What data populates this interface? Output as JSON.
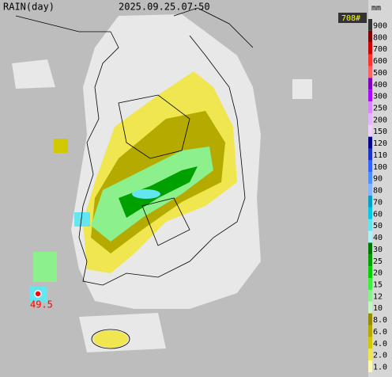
{
  "header": {
    "product": "RAIN(day)",
    "time": "2025.09.25.07:50",
    "count": "708#",
    "unit": "mm"
  },
  "legend": [
    {
      "label": "900",
      "color": "#333333"
    },
    {
      "label": "800",
      "color": "#800000"
    },
    {
      "label": "700",
      "color": "#d20000"
    },
    {
      "label": "600",
      "color": "#ff3232"
    },
    {
      "label": "500",
      "color": "#ff6464"
    },
    {
      "label": "400",
      "color": "#7f00bf"
    },
    {
      "label": "300",
      "color": "#ad07ff"
    },
    {
      "label": "250",
      "color": "#da87ff"
    },
    {
      "label": "200",
      "color": "#e6b4ff"
    },
    {
      "label": "150",
      "color": "#f0d2ff"
    },
    {
      "label": "120",
      "color": "#000390"
    },
    {
      "label": "110",
      "color": "#1e32c8"
    },
    {
      "label": "100",
      "color": "#3264ff"
    },
    {
      "label": "90",
      "color": "#4b91ff"
    },
    {
      "label": "80",
      "color": "#87b4ff"
    },
    {
      "label": "70",
      "color": "#00a0c8"
    },
    {
      "label": "60",
      "color": "#00c8e6"
    },
    {
      "label": "50",
      "color": "#64e6f0"
    },
    {
      "label": "40",
      "color": "#b4f0f5"
    },
    {
      "label": "30",
      "color": "#007800"
    },
    {
      "label": "25",
      "color": "#00a000"
    },
    {
      "label": "20",
      "color": "#00d200"
    },
    {
      "label": "15",
      "color": "#3cf03c"
    },
    {
      "label": "12",
      "color": "#8cf08c"
    },
    {
      "label": "10",
      "color": "#c8f5c8"
    },
    {
      "label": "8.0",
      "color": "#968c00"
    },
    {
      "label": "6.0",
      "color": "#b4aa00"
    },
    {
      "label": "4.0",
      "color": "#d2c800"
    },
    {
      "label": "2.0",
      "color": "#f0e650"
    },
    {
      "label": "1.0",
      "color": "#fafab4"
    }
  ],
  "station": {
    "value": "49.5"
  }
}
